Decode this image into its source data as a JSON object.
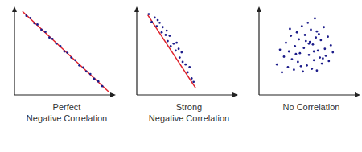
{
  "chart_data": [
    {
      "type": "scatter",
      "title": "Perfect\nNegative Correlation",
      "color": "#1c1c8a",
      "marker": "circle",
      "tick_labels": false,
      "xlim": [
        0,
        10
      ],
      "ylim": [
        0,
        10
      ],
      "x": [
        1.2,
        1.6,
        2.0,
        2.3,
        2.7,
        3.1,
        3.5,
        3.8,
        4.2,
        4.6,
        5.0,
        5.3,
        5.7,
        6.1,
        6.5,
        6.9,
        7.2,
        7.6,
        8.0,
        8.4,
        8.8
      ],
      "values": [
        9.1,
        8.85,
        8.25,
        8.1,
        7.5,
        7.25,
        6.6,
        6.45,
        5.9,
        5.6,
        5.0,
        4.85,
        4.3,
        4.0,
        3.4,
        3.15,
        2.7,
        2.4,
        1.85,
        1.55,
        1.0
      ],
      "fit_line": {
        "x": [
          0.8,
          9.5
        ],
        "values": [
          9.6,
          0.3
        ],
        "color": "#e0202a"
      }
    },
    {
      "type": "scatter",
      "title": "Strong\nNegative Correlation",
      "color": "#1c1c8a",
      "marker": "circle",
      "tick_labels": false,
      "xlim": [
        0,
        10
      ],
      "ylim": [
        0,
        10
      ],
      "x": [
        1.2,
        1.5,
        1.8,
        2.0,
        2.3,
        2.5,
        2.6,
        2.9,
        3.1,
        3.3,
        3.4,
        3.7,
        3.9,
        4.0,
        4.3,
        4.5,
        4.6,
        4.9,
        5.1,
        5.3,
        5.5,
        5.7,
        2.1,
        3.0,
        4.2
      ],
      "values": [
        9.3,
        8.4,
        8.9,
        7.9,
        8.3,
        7.2,
        7.8,
        6.9,
        6.2,
        6.8,
        5.6,
        5.9,
        5.1,
        6.0,
        4.3,
        4.9,
        3.8,
        3.5,
        2.6,
        3.2,
        1.9,
        1.5,
        8.6,
        7.4,
        5.3
      ],
      "fit_line": {
        "x": [
          1.1,
          5.9
        ],
        "values": [
          9.2,
          0.8
        ],
        "color": "#e0202a"
      }
    },
    {
      "type": "scatter",
      "title": "No Correlation",
      "color": "#1c1c8a",
      "marker": "circle",
      "tick_labels": false,
      "xlim": [
        0,
        10
      ],
      "ylim": [
        0,
        10
      ],
      "x": [
        1.8,
        2.1,
        2.3,
        2.5,
        2.7,
        2.9,
        3.0,
        3.2,
        3.3,
        3.5,
        3.6,
        3.8,
        3.9,
        4.0,
        4.1,
        4.3,
        4.4,
        4.5,
        4.6,
        4.8,
        4.9,
        5.0,
        5.1,
        5.2,
        5.3,
        5.4,
        5.5,
        5.6,
        5.7,
        5.8,
        5.9,
        6.0,
        6.1,
        6.2,
        6.3,
        6.5,
        6.6,
        6.7,
        6.9,
        7.0,
        7.2,
        7.4,
        3.1,
        4.2,
        5.0,
        5.8,
        6.4,
        3.7,
        4.7,
        5.5
      ],
      "values": [
        3.5,
        5.2,
        2.6,
        4.4,
        6.0,
        3.2,
        5.0,
        6.8,
        4.1,
        2.9,
        5.6,
        7.2,
        3.8,
        6.4,
        4.8,
        7.9,
        2.7,
        5.4,
        6.9,
        3.4,
        8.3,
        4.6,
        6.1,
        7.5,
        3.0,
        5.8,
        4.0,
        8.8,
        6.6,
        2.8,
        5.1,
        7.0,
        4.3,
        6.3,
        3.6,
        7.8,
        5.3,
        4.5,
        6.7,
        3.9,
        5.7,
        4.9,
        7.6,
        3.3,
        5.9,
        7.3,
        4.2,
        4.7,
        6.2,
        5.0
      ]
    }
  ]
}
